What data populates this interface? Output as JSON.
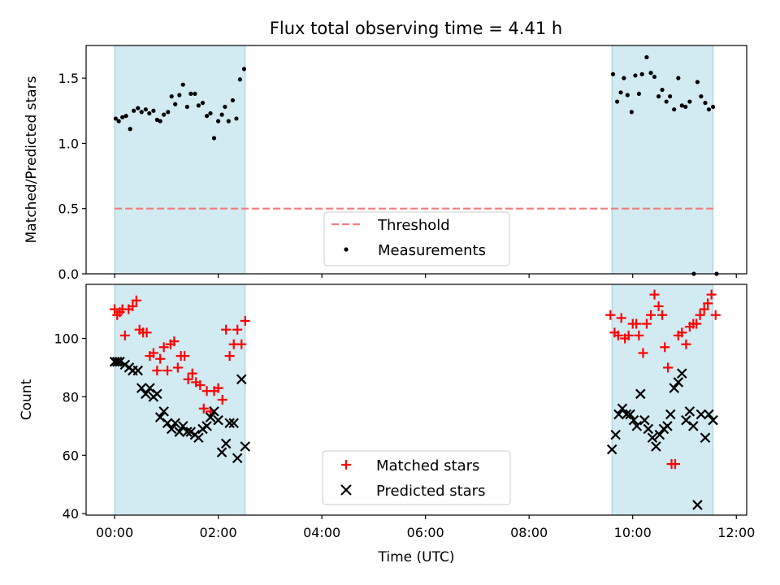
{
  "figure": {
    "title": "Flux total observing time = 4.41 h"
  },
  "chart_data": [
    {
      "type": "scatter",
      "panel": "top",
      "ylabel": "Matched/Predicted stars",
      "ylim": [
        0,
        1.75
      ],
      "yticks": [
        0.0,
        0.5,
        1.0,
        1.5
      ],
      "ytick_labels": [
        "0.0",
        "0.5",
        "1.0",
        "1.5"
      ],
      "xlim_hours": [
        -0.55,
        12.2
      ],
      "xticks_hours": [
        0,
        2,
        4,
        6,
        8,
        10,
        12
      ],
      "shaded_intervals_hours": [
        [
          0.0,
          2.52
        ],
        [
          9.6,
          11.55
        ]
      ],
      "shade_color": "#add8e6",
      "legend_position": "lower center",
      "threshold": {
        "name": "Threshold",
        "value": 0.5,
        "x_range_hours": [
          0.0,
          11.6
        ],
        "color": "#f08080"
      },
      "series": [
        {
          "name": "Measurements",
          "marker": "dot",
          "color": "#000000",
          "x_hours": [
            0.02,
            0.08,
            0.15,
            0.22,
            0.3,
            0.37,
            0.45,
            0.52,
            0.6,
            0.67,
            0.75,
            0.82,
            0.88,
            0.95,
            1.03,
            1.1,
            1.17,
            1.25,
            1.32,
            1.4,
            1.47,
            1.55,
            1.62,
            1.7,
            1.78,
            1.85,
            1.92,
            2.0,
            2.07,
            2.13,
            2.2,
            2.28,
            2.35,
            2.42,
            2.5,
            9.62,
            9.7,
            9.77,
            9.83,
            9.9,
            9.98,
            10.05,
            10.12,
            10.18,
            10.27,
            10.35,
            10.42,
            10.5,
            10.57,
            10.65,
            10.72,
            10.8,
            10.88,
            10.95,
            11.02,
            11.1,
            11.18,
            11.25,
            11.32,
            11.4,
            11.47,
            11.55,
            11.62
          ],
          "y": [
            1.19,
            1.17,
            1.2,
            1.21,
            1.11,
            1.25,
            1.27,
            1.24,
            1.26,
            1.23,
            1.25,
            1.18,
            1.17,
            1.22,
            1.24,
            1.36,
            1.3,
            1.37,
            1.45,
            1.28,
            1.38,
            1.38,
            1.29,
            1.31,
            1.21,
            1.23,
            1.04,
            1.17,
            1.22,
            1.28,
            1.17,
            1.33,
            1.19,
            1.49,
            1.57,
            1.53,
            1.32,
            1.39,
            1.5,
            1.37,
            1.24,
            1.52,
            1.38,
            1.53,
            1.66,
            1.54,
            1.51,
            1.36,
            1.41,
            1.32,
            1.36,
            1.26,
            1.5,
            1.29,
            1.28,
            1.32,
            0.0,
            1.47,
            1.36,
            1.31,
            1.26,
            1.28,
            0.0
          ]
        }
      ]
    },
    {
      "type": "scatter",
      "panel": "bottom",
      "xlabel": "Time (UTC)",
      "ylabel": "Count",
      "ylim": [
        39.5,
        118.5
      ],
      "yticks": [
        40,
        60,
        80,
        100
      ],
      "ytick_labels": [
        "40",
        "60",
        "80",
        "100"
      ],
      "xlim_hours": [
        -0.55,
        12.2
      ],
      "xticks_hours": [
        0,
        2,
        4,
        6,
        8,
        10,
        12
      ],
      "xtick_labels": [
        "00:00",
        "02:00",
        "04:00",
        "06:00",
        "08:00",
        "10:00",
        "12:00"
      ],
      "shaded_intervals_hours": [
        [
          0.0,
          2.52
        ],
        [
          9.6,
          11.55
        ]
      ],
      "shade_color": "#add8e6",
      "legend_position": "lower center",
      "series": [
        {
          "name": "Matched stars",
          "marker": "plus",
          "color": "#ff0000",
          "x_hours": [
            0.0,
            0.05,
            0.1,
            0.15,
            0.2,
            0.27,
            0.35,
            0.42,
            0.48,
            0.55,
            0.62,
            0.68,
            0.75,
            0.82,
            0.88,
            0.95,
            1.02,
            1.08,
            1.15,
            1.22,
            1.28,
            1.35,
            1.42,
            1.5,
            1.57,
            1.65,
            1.72,
            1.78,
            1.85,
            1.92,
            2.0,
            2.08,
            2.15,
            2.22,
            2.3,
            2.37,
            2.45,
            2.52,
            9.57,
            9.65,
            9.72,
            9.78,
            9.85,
            9.92,
            10.0,
            10.07,
            10.12,
            10.2,
            10.27,
            10.35,
            10.42,
            10.5,
            10.57,
            10.62,
            10.68,
            10.75,
            10.82,
            10.88,
            10.95,
            11.03,
            11.1,
            11.17,
            11.23,
            11.3,
            11.38,
            11.45,
            11.52,
            11.6
          ],
          "y": [
            110,
            108,
            109,
            110,
            101,
            110,
            111,
            113,
            103,
            102,
            102,
            94,
            95,
            89,
            93,
            97,
            89,
            98,
            99,
            90,
            94,
            94,
            86,
            88,
            85,
            84,
            76,
            82,
            75,
            82,
            83,
            79,
            103,
            94,
            98,
            103,
            98,
            106,
            108,
            102,
            101,
            107,
            100,
            101,
            105,
            105,
            101,
            95,
            105,
            108,
            115,
            111,
            108,
            97,
            90,
            57,
            57,
            101,
            102,
            98,
            104,
            105,
            105,
            108,
            110,
            112,
            115,
            108
          ],
          "x_hours_note": "",
          "y_note": ""
        },
        {
          "name": "Predicted stars",
          "marker": "x",
          "color": "#000000",
          "x_hours": [
            0.0,
            0.05,
            0.1,
            0.2,
            0.28,
            0.35,
            0.45,
            0.52,
            0.6,
            0.68,
            0.75,
            0.82,
            0.88,
            0.95,
            1.02,
            1.1,
            1.17,
            1.25,
            1.32,
            1.4,
            1.47,
            1.55,
            1.62,
            1.7,
            1.78,
            1.85,
            1.92,
            2.0,
            2.07,
            2.15,
            2.22,
            2.3,
            2.37,
            2.45,
            2.52,
            9.6,
            9.67,
            9.73,
            9.8,
            9.88,
            9.95,
            10.02,
            10.08,
            10.15,
            10.23,
            10.3,
            10.38,
            10.45,
            10.52,
            10.6,
            10.67,
            10.73,
            10.8,
            10.88,
            10.95,
            11.03,
            11.1,
            11.17,
            11.25,
            11.32,
            11.4,
            11.47,
            11.55
          ],
          "y": [
            92,
            92,
            92,
            91,
            90,
            89,
            89,
            83,
            81,
            83,
            80,
            81,
            73,
            75,
            71,
            69,
            71,
            68,
            70,
            68,
            68,
            67,
            66,
            69,
            70,
            73,
            75,
            72,
            61,
            64,
            71,
            71,
            59,
            86,
            63,
            62,
            67,
            74,
            76,
            74,
            74,
            72,
            70,
            81,
            72,
            69,
            66,
            63,
            67,
            69,
            70,
            74,
            83,
            85,
            88,
            72,
            75,
            70,
            43,
            74,
            66,
            74,
            72
          ]
        }
      ]
    }
  ],
  "legend_top": [
    "Threshold",
    "Measurements"
  ],
  "legend_bottom": [
    "Matched stars",
    "Predicted stars"
  ]
}
